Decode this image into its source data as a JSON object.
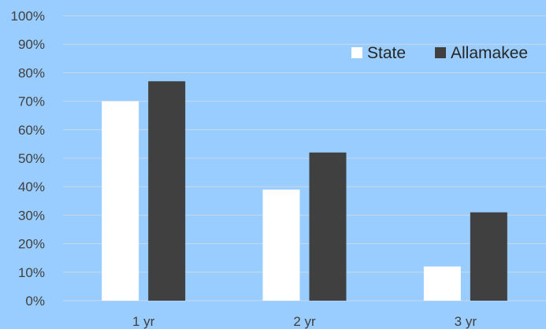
{
  "chart_data": {
    "type": "bar",
    "categories": [
      "1 yr",
      "2 yr",
      "3 yr"
    ],
    "series": [
      {
        "name": "State",
        "values": [
          70,
          39,
          12
        ],
        "color": "#ffffff"
      },
      {
        "name": "Allamakee",
        "values": [
          77,
          52,
          31
        ],
        "color": "#404040"
      }
    ],
    "ylim": [
      0,
      100
    ],
    "yticks": [
      "0%",
      "10%",
      "20%",
      "30%",
      "40%",
      "50%",
      "60%",
      "70%",
      "80%",
      "90%",
      "100%"
    ],
    "legend": "top-right",
    "grid": true,
    "background": "#99ccff"
  }
}
